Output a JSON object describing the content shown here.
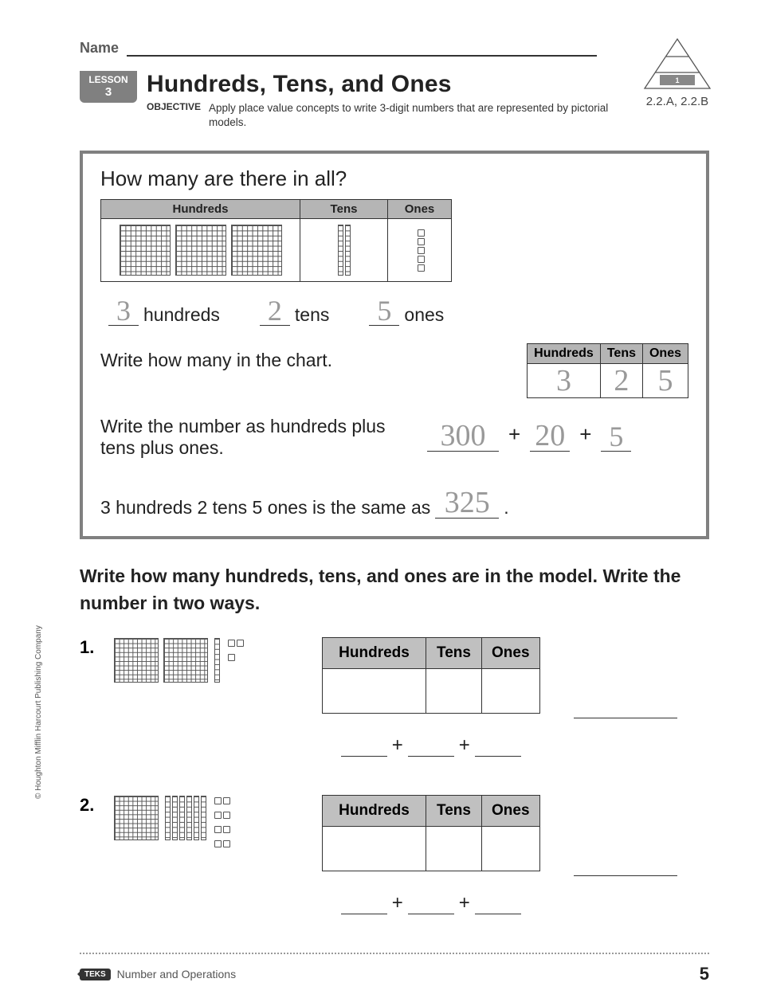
{
  "name_label": "Name",
  "standards": "2.2.A, 2.2.B",
  "lesson": {
    "label": "LESSON",
    "number": "3"
  },
  "title": "Hundreds, Tens, and Ones",
  "objective_label": "OBJECTIVE",
  "objective_text": "Apply place value concepts to write 3-digit numbers that are represented by pictorial models.",
  "example": {
    "question": "How many are there in all?",
    "headers": {
      "h": "Hundreds",
      "t": "Tens",
      "o": "Ones"
    },
    "model": {
      "hundreds": 3,
      "tens": 2,
      "ones": 5
    },
    "count_labels": {
      "h": "hundreds",
      "t": "tens",
      "o": "ones"
    },
    "answers": {
      "h": "3",
      "t": "2",
      "o": "5"
    },
    "chart_prompt": "Write how many in the chart.",
    "expand_prompt": "Write the number as hundreds plus tens plus ones.",
    "expanded": {
      "h": "300",
      "t": "20",
      "o": "5"
    },
    "final_prompt_prefix": "3 hundreds 2 tens 5 ones is the same as ",
    "final_answer": "325",
    "period": "."
  },
  "instructions": "Write how many hundreds, tens, and ones are in the model. Write the number in two ways.",
  "problems": [
    {
      "num": "1.",
      "model": {
        "hundreds": 2,
        "tens": 1,
        "ones": 3
      },
      "headers": {
        "h": "Hundreds",
        "t": "Tens",
        "o": "Ones"
      }
    },
    {
      "num": "2.",
      "model": {
        "hundreds": 1,
        "tens": 6,
        "ones": 8
      },
      "headers": {
        "h": "Hundreds",
        "t": "Tens",
        "o": "Ones"
      }
    }
  ],
  "plus": "+",
  "footer": {
    "teks": "TEKS",
    "category": "Number and Operations",
    "page": "5"
  },
  "copyright": "© Houghton Mifflin Harcourt Publishing Company",
  "colors": {
    "gray_header": "#b5b5b5",
    "border": "#333333",
    "lesson_bg": "#808080",
    "dotted_answer": "#999999"
  }
}
